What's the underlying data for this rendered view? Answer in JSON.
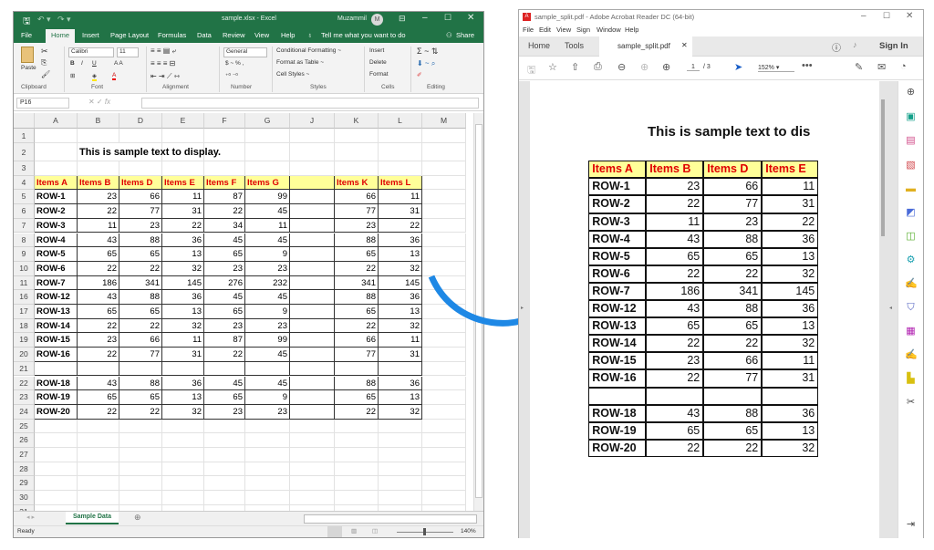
{
  "excel": {
    "title": "sample.xlsx  -  Excel",
    "user": "Muzammil",
    "user_initial": "M",
    "tabs": [
      "File",
      "Home",
      "Insert",
      "Page Layout",
      "Formulas",
      "Data",
      "Review",
      "View",
      "Help"
    ],
    "active_tab": "Home",
    "tell_me": "Tell me what you want to do",
    "share": "Share",
    "ribbon": {
      "paste": "Paste",
      "font_name": "Calibri",
      "font_size": "11",
      "number_format": "General",
      "conditional_formatting": "Conditional Formatting ~",
      "format_as_table": "Format as Table ~",
      "cell_styles": "Cell Styles ~",
      "insert": "Insert",
      "delete": "Delete",
      "format": "Format",
      "groups": [
        "Clipboard",
        "Font",
        "Alignment",
        "Number",
        "Styles",
        "Cells",
        "Editing"
      ]
    },
    "name_box": "P16",
    "formula_value": "",
    "columns": [
      "A",
      "B",
      "D",
      "E",
      "F",
      "G",
      "J",
      "K",
      "L",
      "M"
    ],
    "title_cell": "This is sample text to display.",
    "headers": [
      "Items A",
      "Items B",
      "Items D",
      "Items E",
      "Items F",
      "Items G",
      "",
      "Items K",
      "Items L"
    ],
    "rows": [
      {
        "n": "5",
        "c": [
          "ROW-1",
          "23",
          "66",
          "11",
          "87",
          "99",
          "",
          "66",
          "11"
        ]
      },
      {
        "n": "6",
        "c": [
          "ROW-2",
          "22",
          "77",
          "31",
          "22",
          "45",
          "",
          "77",
          "31"
        ]
      },
      {
        "n": "7",
        "c": [
          "ROW-3",
          "11",
          "23",
          "22",
          "34",
          "11",
          "",
          "23",
          "22"
        ]
      },
      {
        "n": "8",
        "c": [
          "ROW-4",
          "43",
          "88",
          "36",
          "45",
          "45",
          "",
          "88",
          "36"
        ]
      },
      {
        "n": "9",
        "c": [
          "ROW-5",
          "65",
          "65",
          "13",
          "65",
          "9",
          "",
          "65",
          "13"
        ]
      },
      {
        "n": "10",
        "c": [
          "ROW-6",
          "22",
          "22",
          "32",
          "23",
          "23",
          "",
          "22",
          "32"
        ]
      },
      {
        "n": "11",
        "c": [
          "ROW-7",
          "186",
          "341",
          "145",
          "276",
          "232",
          "",
          "341",
          "145"
        ]
      },
      {
        "n": "16",
        "c": [
          "ROW-12",
          "43",
          "88",
          "36",
          "45",
          "45",
          "",
          "88",
          "36"
        ]
      },
      {
        "n": "17",
        "c": [
          "ROW-13",
          "65",
          "65",
          "13",
          "65",
          "9",
          "",
          "65",
          "13"
        ]
      },
      {
        "n": "18",
        "c": [
          "ROW-14",
          "22",
          "22",
          "32",
          "23",
          "23",
          "",
          "22",
          "32"
        ]
      },
      {
        "n": "19",
        "c": [
          "ROW-15",
          "23",
          "66",
          "11",
          "87",
          "99",
          "",
          "66",
          "11"
        ]
      },
      {
        "n": "20",
        "c": [
          "ROW-16",
          "22",
          "77",
          "31",
          "22",
          "45",
          "",
          "77",
          "31"
        ]
      },
      {
        "n": "21",
        "c": [
          "",
          "",
          "",
          "",
          "",
          "",
          "",
          "",
          ""
        ]
      },
      {
        "n": "22",
        "c": [
          "ROW-18",
          "43",
          "88",
          "36",
          "45",
          "45",
          "",
          "88",
          "36"
        ]
      },
      {
        "n": "23",
        "c": [
          "ROW-19",
          "65",
          "65",
          "13",
          "65",
          "9",
          "",
          "65",
          "13"
        ]
      },
      {
        "n": "24",
        "c": [
          "ROW-20",
          "22",
          "22",
          "32",
          "23",
          "23",
          "",
          "22",
          "32"
        ]
      }
    ],
    "empty_rows": [
      "25",
      "26",
      "27",
      "28",
      "29",
      "30",
      "31"
    ],
    "sheet_tab": "Sample Data",
    "status": "Ready",
    "zoom": "140%"
  },
  "acrobat": {
    "title": "sample_split.pdf - Adobe Acrobat Reader DC (64-bit)",
    "menu": [
      "File",
      "Edit",
      "View",
      "Sign",
      "Window",
      "Help"
    ],
    "tabs": [
      "Home",
      "Tools"
    ],
    "doc_tab": "sample_split.pdf",
    "sign_in": "Sign In",
    "page_current": "1",
    "page_total": "/ 3",
    "zoom": "152%",
    "page_title": "This is sample text to dis",
    "headers": [
      "Items A",
      "Items B",
      "Items D",
      "Items E"
    ],
    "rows": [
      [
        "ROW-1",
        "23",
        "66",
        "11"
      ],
      [
        "ROW-2",
        "22",
        "77",
        "31"
      ],
      [
        "ROW-3",
        "11",
        "23",
        "22"
      ],
      [
        "ROW-4",
        "43",
        "88",
        "36"
      ],
      [
        "ROW-5",
        "65",
        "65",
        "13"
      ],
      [
        "ROW-6",
        "22",
        "22",
        "32"
      ],
      [
        "ROW-7",
        "186",
        "341",
        "145"
      ],
      [
        "ROW-12",
        "43",
        "88",
        "36"
      ],
      [
        "ROW-13",
        "65",
        "65",
        "13"
      ],
      [
        "ROW-14",
        "22",
        "22",
        "32"
      ],
      [
        "ROW-15",
        "23",
        "66",
        "11"
      ],
      [
        "ROW-16",
        "22",
        "77",
        "31"
      ],
      [
        "",
        "",
        "",
        ""
      ],
      [
        "ROW-18",
        "43",
        "88",
        "36"
      ],
      [
        "ROW-19",
        "65",
        "65",
        "13"
      ],
      [
        "ROW-20",
        "22",
        "22",
        "32"
      ]
    ]
  },
  "colors": {
    "excel_green": "#217346",
    "header_fill": "#ffff99",
    "header_text": "#e00000",
    "arrow": "#1e88e5"
  }
}
